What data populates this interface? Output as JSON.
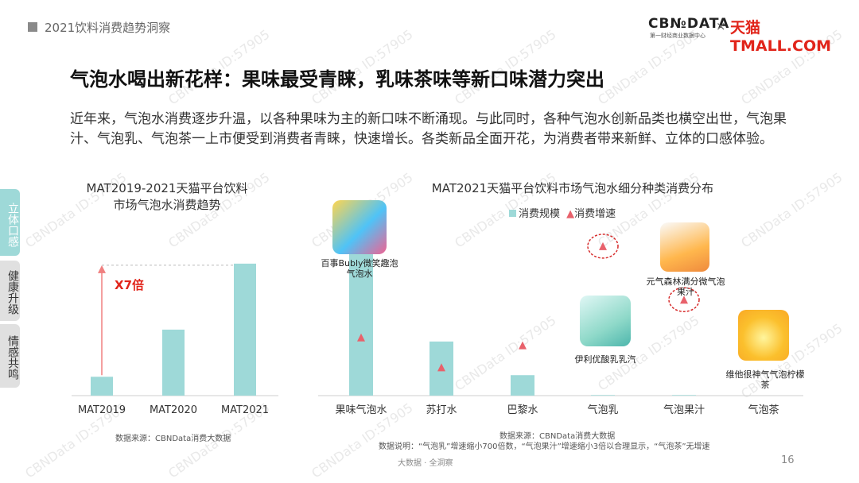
{
  "header": {
    "section_title": "2021饮料消费趋势洞察",
    "logo_cbn": "CB№DATA",
    "logo_cbn_sub": "第一财经商业数据中心",
    "logo_x": "×",
    "logo_tmall": "天猫TMALL.COM"
  },
  "headline": "气泡水喝出新花样：果味最受青睐，乳味茶味等新口味潜力突出",
  "intro": "近年来，气泡水消费逐步升温，以各种果味为主的新口味不断涌现。与此同时，各种气泡水创新品类也横空出世，气泡果汁、气泡乳、气泡茶一上市便受到消费者青睐，快速增长。各类新品全面开花，为消费者带来新鲜、立体的口感体验。",
  "side_tabs": [
    "立体口感",
    "健康升级",
    "情感共鸣"
  ],
  "watermark": "CBNData ID:57905",
  "footer": {
    "center": "大数据 · 全洞察",
    "page": "16"
  },
  "left_chart": {
    "title_line1": "MAT2019-2021天猫平台饮料",
    "title_line2": "市场气泡水消费趋势",
    "annotation": "X7倍",
    "source": "数据来源：CBNData消费大数据"
  },
  "right_chart": {
    "title": "MAT2021天猫平台饮料市场气泡水细分种类消费分布",
    "legend_bar": "消费规模",
    "legend_tri": "消费增速",
    "source": "数据来源：CBNData消费大数据",
    "note": "数据说明：“气泡乳”增速缩小700倍数，“气泡果汁”增速缩小3倍以合理显示，“气泡茶”无增速",
    "products": [
      {
        "label": "百事Bubly微笑趣泡气泡水",
        "icon": "sparkling-water-cans-icon"
      },
      {
        "label": "元气森林满分微气泡果汁",
        "icon": "juice-bottle-icon"
      },
      {
        "label": "伊利优酸乳乳汽",
        "icon": "milk-soda-cans-icon"
      },
      {
        "label": "维他很神气气泡柠檬茶",
        "icon": "lemon-tea-icon"
      }
    ]
  },
  "colors": {
    "bar": "#9ed9d8",
    "triangle": "#e8616b",
    "arrow": "#f08080",
    "accent_red": "#e1251b",
    "dashed_circle": "#d62b2b"
  },
  "chart_data": [
    {
      "type": "bar",
      "categories": [
        "MAT2019",
        "MAT2020",
        "MAT2021"
      ],
      "values": [
        1,
        3.5,
        7
      ],
      "ylim": [
        0,
        7.5
      ],
      "annotation": "X7倍"
    },
    {
      "type": "bar",
      "categories": [
        "果味气泡水",
        "苏打水",
        "巴黎水",
        "气泡乳",
        "气泡果汁",
        "气泡茶"
      ],
      "series": [
        {
          "name": "消费规模",
          "values": [
            100,
            37,
            14,
            0.4,
            0.4,
            0
          ]
        },
        {
          "name": "消费增速",
          "values": [
            37,
            18,
            32,
            95,
            61,
            null
          ]
        }
      ],
      "circled": [
        "气泡乳",
        "气泡果汁"
      ]
    }
  ]
}
